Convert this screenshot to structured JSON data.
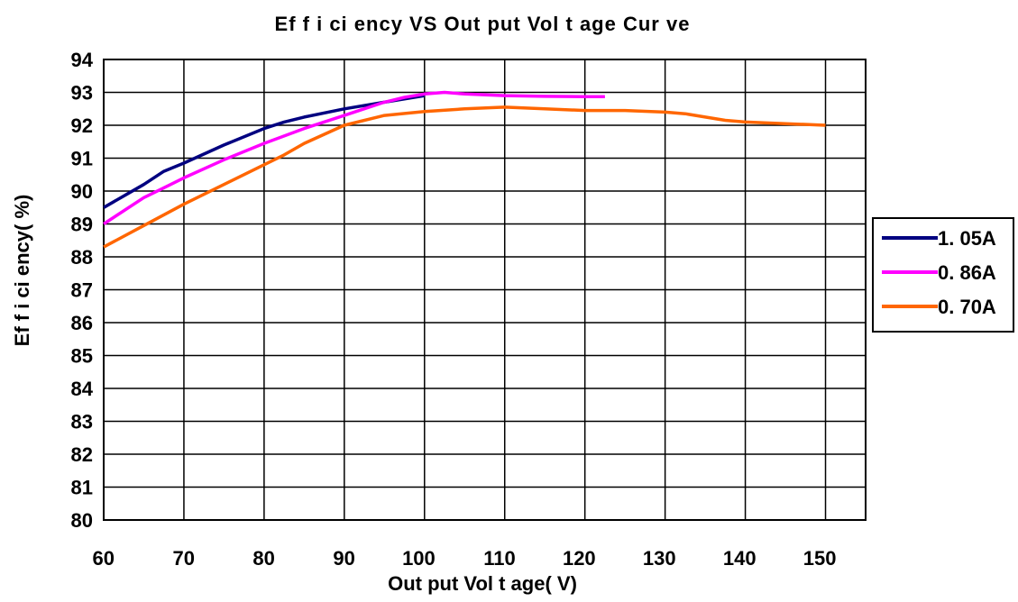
{
  "chart_data": {
    "type": "line",
    "title": "Ef f i ci ency VS Out put  Vol t age Cur ve",
    "xlabel": "Out put  Vol t age( V)",
    "ylabel": "Ef f i ci ency( %)",
    "xlim": [
      60,
      155
    ],
    "ylim": [
      80,
      94
    ],
    "xticks": [
      60,
      70,
      80,
      90,
      100,
      110,
      120,
      130,
      140,
      150
    ],
    "yticks": [
      80,
      81,
      82,
      83,
      84,
      85,
      86,
      87,
      88,
      89,
      90,
      91,
      92,
      93,
      94
    ],
    "grid": true,
    "legend_position": "right",
    "series": [
      {
        "name": "1. 05A",
        "color": "#000080",
        "x": [
          60,
          65,
          67.5,
          70,
          75,
          80,
          82.5,
          85,
          90,
          95,
          100
        ],
        "y": [
          89.5,
          90.2,
          90.6,
          90.85,
          91.4,
          91.9,
          92.1,
          92.25,
          92.5,
          92.7,
          92.9
        ]
      },
      {
        "name": "0. 86A",
        "color": "#FF00FF",
        "x": [
          60,
          65,
          67.5,
          70,
          75,
          80,
          85,
          90,
          95,
          97.5,
          100,
          102.5,
          105,
          110,
          115,
          120,
          122.5
        ],
        "y": [
          89.0,
          89.8,
          90.1,
          90.4,
          90.95,
          91.45,
          91.9,
          92.3,
          92.7,
          92.85,
          92.95,
          93.0,
          92.95,
          92.9,
          92.88,
          92.87,
          92.87
        ]
      },
      {
        "name": "0. 70A",
        "color": "#FF6600",
        "x": [
          60,
          65,
          70,
          75,
          80,
          82.5,
          85,
          90,
          95,
          100,
          105,
          110,
          115,
          120,
          125,
          130,
          132.5,
          137.5,
          140,
          145,
          150
        ],
        "y": [
          88.3,
          88.95,
          89.6,
          90.2,
          90.8,
          91.1,
          91.45,
          92.0,
          92.3,
          92.42,
          92.5,
          92.55,
          92.5,
          92.45,
          92.45,
          92.4,
          92.35,
          92.15,
          92.1,
          92.05,
          92.0
        ]
      }
    ]
  }
}
